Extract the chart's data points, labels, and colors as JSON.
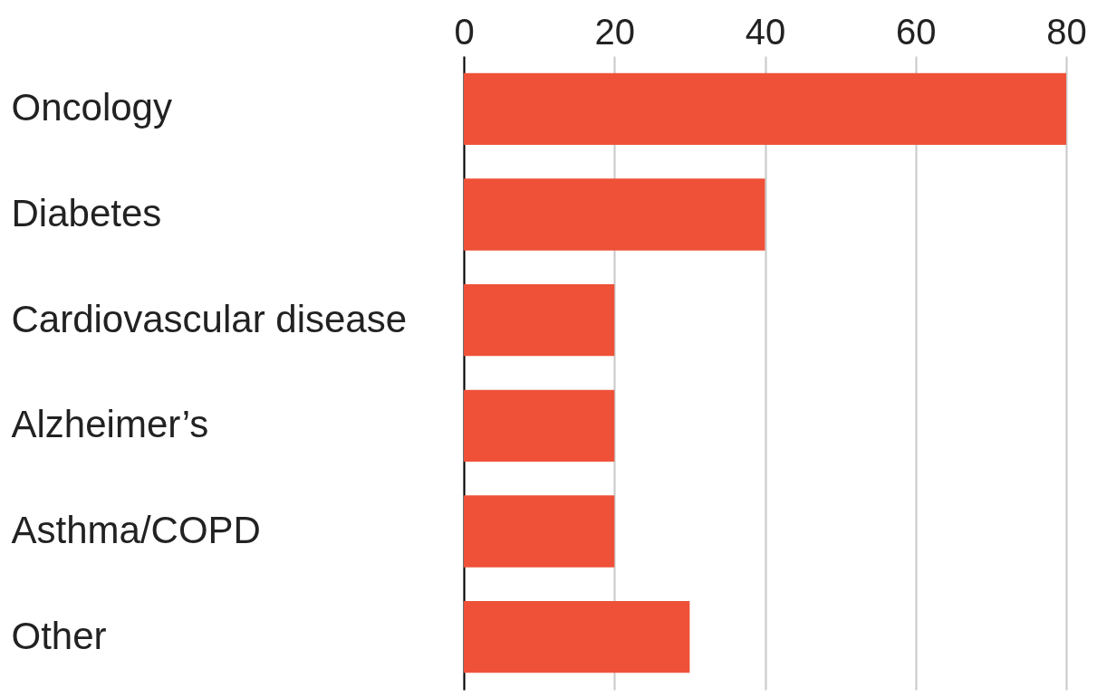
{
  "chart_data": {
    "type": "bar",
    "orientation": "horizontal",
    "categories": [
      "Oncology",
      "Diabetes",
      "Cardiovascular disease",
      "Alzheimer’s",
      "Asthma/COPD",
      "Other"
    ],
    "values": [
      80,
      40,
      20,
      20,
      20,
      30
    ],
    "color": "#ee5138",
    "xlim": [
      0,
      80
    ],
    "xticks": [
      0,
      20,
      40,
      60,
      80
    ],
    "grid": "x"
  }
}
